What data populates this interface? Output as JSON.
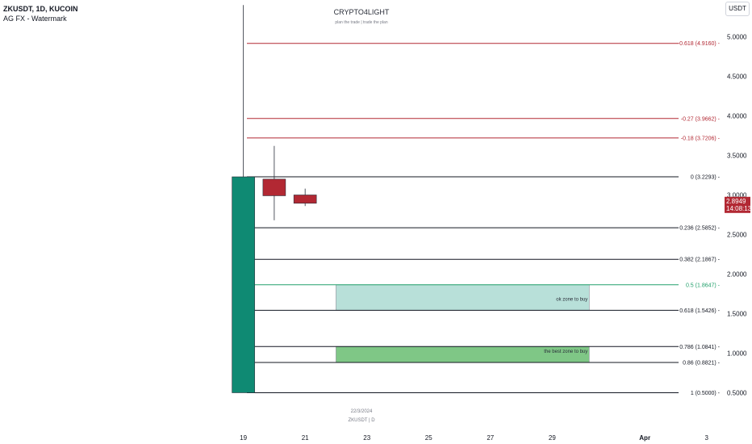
{
  "header": {
    "symbol_line": "ZKUSDT, 1D, KUCOIN",
    "indicator_line": "AG FX - Watermark"
  },
  "watermark": {
    "title": "CRYPTO4LIGHT",
    "subtitle": "plan the trade | trade the plan"
  },
  "currency_label": "USDT",
  "price_tag": {
    "price": "2.8949",
    "countdown": "14:08:13",
    "color": "#b22833"
  },
  "footer_note": {
    "date": "22/3/2024",
    "symbol": "ZKUSDT | D"
  },
  "colors": {
    "up": "#0f8a73",
    "down": "#b22833",
    "fib_red": "#b22833",
    "fib_black": "#131722",
    "fib_green": "#22a06b",
    "zone_ok": "#b8e0d9",
    "zone_best": "#7fc786"
  },
  "chart_data": {
    "type": "candlestick",
    "y_axis": {
      "range": [
        0.3,
        5.2
      ],
      "ticks": [
        "5.0000",
        "4.5000",
        "4.0000",
        "3.5000",
        "3.0000",
        "2.5000",
        "2.0000",
        "1.5000",
        "1.0000",
        "0.5000"
      ],
      "tick_values": [
        5.0,
        4.5,
        4.0,
        3.5,
        3.0,
        2.5,
        2.0,
        1.5,
        1.0,
        0.5
      ]
    },
    "x_axis": {
      "labels": [
        "19",
        "21",
        "23",
        "25",
        "27",
        "29",
        "Apr",
        "3"
      ],
      "label_days": [
        19,
        21,
        23,
        25,
        27,
        29,
        32,
        34
      ],
      "bold": [
        false,
        false,
        false,
        false,
        false,
        false,
        true,
        false
      ],
      "range_days": [
        18.2,
        35.0
      ]
    },
    "candles": [
      {
        "day": 19,
        "open": 0.5,
        "high": 5.4,
        "low": 0.5,
        "close": 3.2293
      },
      {
        "day": 20,
        "open": 3.2,
        "high": 3.62,
        "low": 2.68,
        "close": 2.99
      },
      {
        "day": 21,
        "open": 3.0,
        "high": 3.08,
        "low": 2.86,
        "close": 2.8949
      }
    ],
    "fib_levels": [
      {
        "label": "-0.618 (4.9160)",
        "value": 4.916,
        "color": "fib_red"
      },
      {
        "label": "-0.27 (3.9662)",
        "value": 3.9662,
        "color": "fib_red"
      },
      {
        "label": "-0.18 (3.7206)",
        "value": 3.7206,
        "color": "fib_red"
      },
      {
        "label": "0 (3.2293)",
        "value": 3.2293,
        "color": "fib_black"
      },
      {
        "label": "0.236 (2.5852)",
        "value": 2.5852,
        "color": "fib_black"
      },
      {
        "label": "0.382 (2.1867)",
        "value": 2.1867,
        "color": "fib_black"
      },
      {
        "label": "0.5 (1.8647)",
        "value": 1.8647,
        "color": "fib_green"
      },
      {
        "label": "0.618 (1.5426)",
        "value": 1.5426,
        "color": "fib_black"
      },
      {
        "label": "0.786 (1.0841)",
        "value": 1.0841,
        "color": "fib_black"
      },
      {
        "label": "0.86 (0.8821)",
        "value": 0.8821,
        "color": "fib_black"
      },
      {
        "label": "1 (0.5000)",
        "value": 0.5,
        "color": "fib_black"
      }
    ],
    "zones": [
      {
        "label": "ok zone to buy",
        "top": 1.8647,
        "bottom": 1.5426,
        "x_start_day": 22,
        "x_end_day": 30.2,
        "color": "zone_ok"
      },
      {
        "label": "the best zone to buy",
        "top": 1.0841,
        "bottom": 0.8821,
        "x_start_day": 22,
        "x_end_day": 30.2,
        "color": "zone_best"
      }
    ]
  }
}
